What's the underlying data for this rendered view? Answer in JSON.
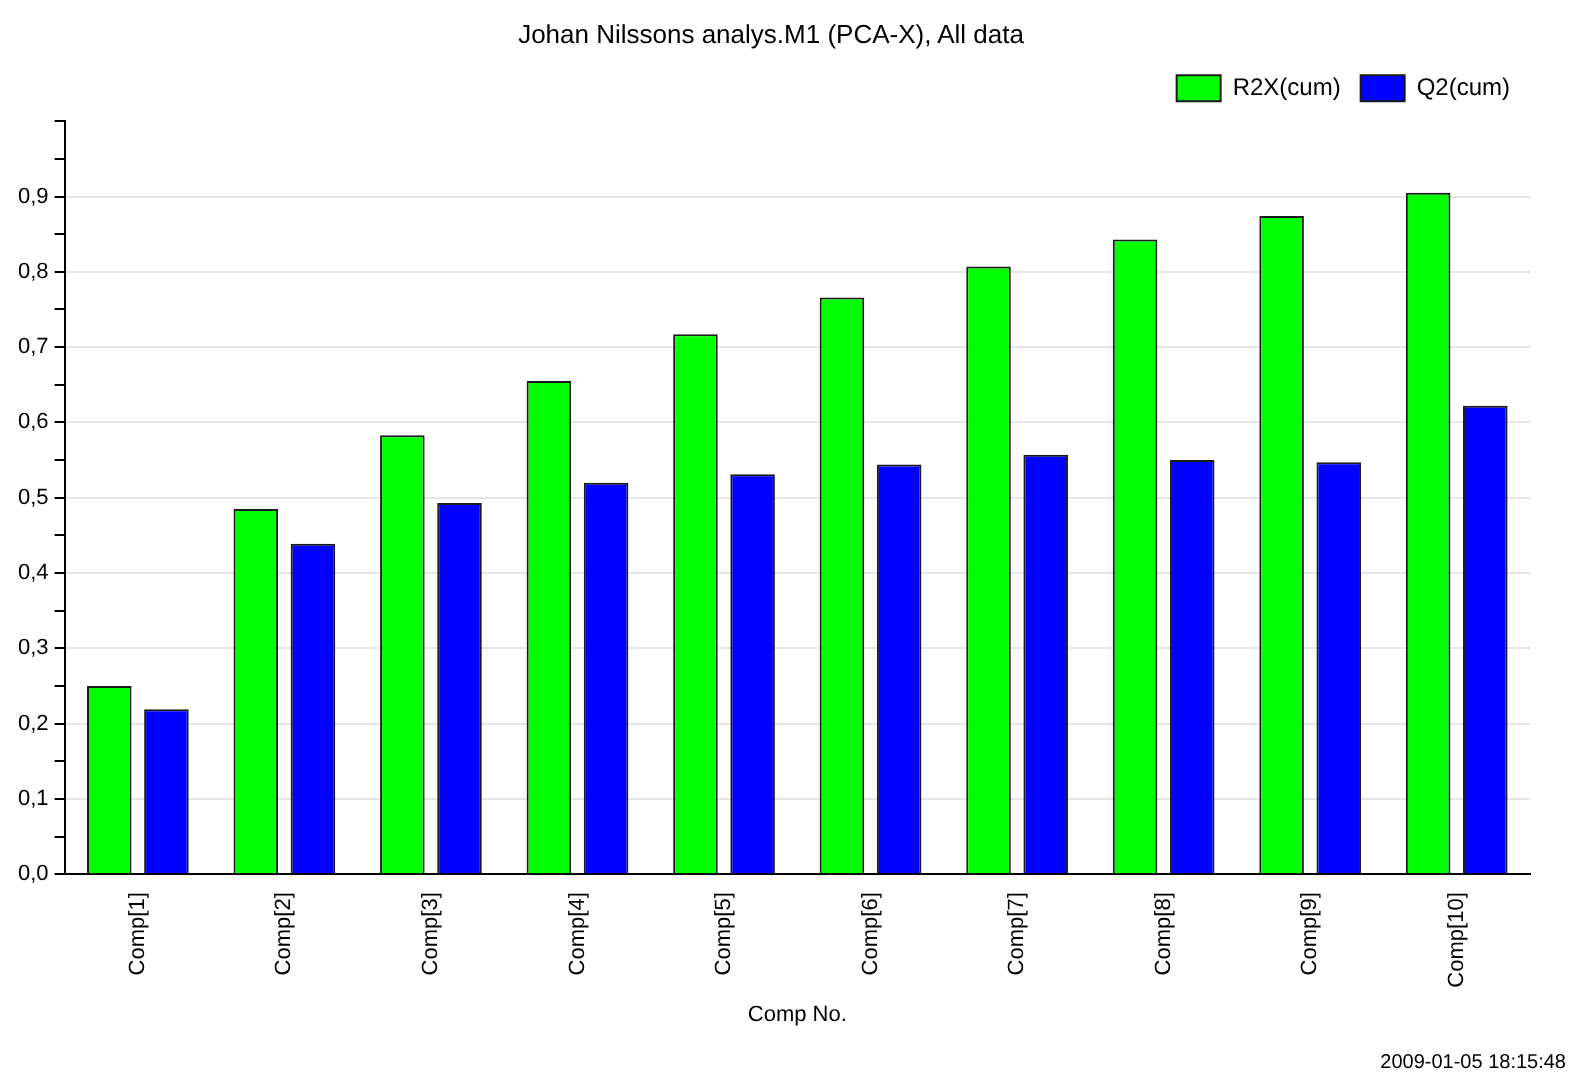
{
  "chart_data": {
    "type": "bar",
    "title": "Johan Nilssons analys.M1 (PCA-X), All data",
    "xlabel": "Comp No.",
    "categories": [
      "Comp[1]",
      "Comp[2]",
      "Comp[3]",
      "Comp[4]",
      "Comp[5]",
      "Comp[6]",
      "Comp[7]",
      "Comp[8]",
      "Comp[9]",
      "Comp[10]"
    ],
    "series": [
      {
        "name": "R2X(cum)",
        "color": "#00ff00",
        "values": [
          0.25,
          0.485,
          0.583,
          0.655,
          0.717,
          0.766,
          0.807,
          0.843,
          0.874,
          0.905
        ]
      },
      {
        "name": "Q2(cum)",
        "color": "#0000ff",
        "values": [
          0.219,
          0.439,
          0.493,
          0.52,
          0.531,
          0.544,
          0.557,
          0.55,
          0.547,
          0.622
        ]
      }
    ],
    "ylim": [
      0,
      1
    ],
    "yticks": [
      {
        "value": 0,
        "label": "0,0"
      },
      {
        "value": 0.05,
        "label": null
      },
      {
        "value": 0.1,
        "label": "0,1"
      },
      {
        "value": 0.15,
        "label": null
      },
      {
        "value": 0.2,
        "label": "0,2"
      },
      {
        "value": 0.25,
        "label": null
      },
      {
        "value": 0.3,
        "label": "0,3"
      },
      {
        "value": 0.35,
        "label": null
      },
      {
        "value": 0.4,
        "label": "0,4"
      },
      {
        "value": 0.45,
        "label": null
      },
      {
        "value": 0.5,
        "label": "0,5"
      },
      {
        "value": 0.55,
        "label": null
      },
      {
        "value": 0.6,
        "label": "0,6"
      },
      {
        "value": 0.65,
        "label": null
      },
      {
        "value": 0.7,
        "label": "0,7"
      },
      {
        "value": 0.75,
        "label": null
      },
      {
        "value": 0.8,
        "label": "0,8"
      },
      {
        "value": 0.85,
        "label": null
      },
      {
        "value": 0.9,
        "label": "0,9"
      },
      {
        "value": 0.95,
        "label": null
      },
      {
        "value": 1,
        "label": null
      }
    ],
    "grid": "y",
    "legend": "top right",
    "annotations": [
      "2009-01-05 18:15:48"
    ]
  }
}
